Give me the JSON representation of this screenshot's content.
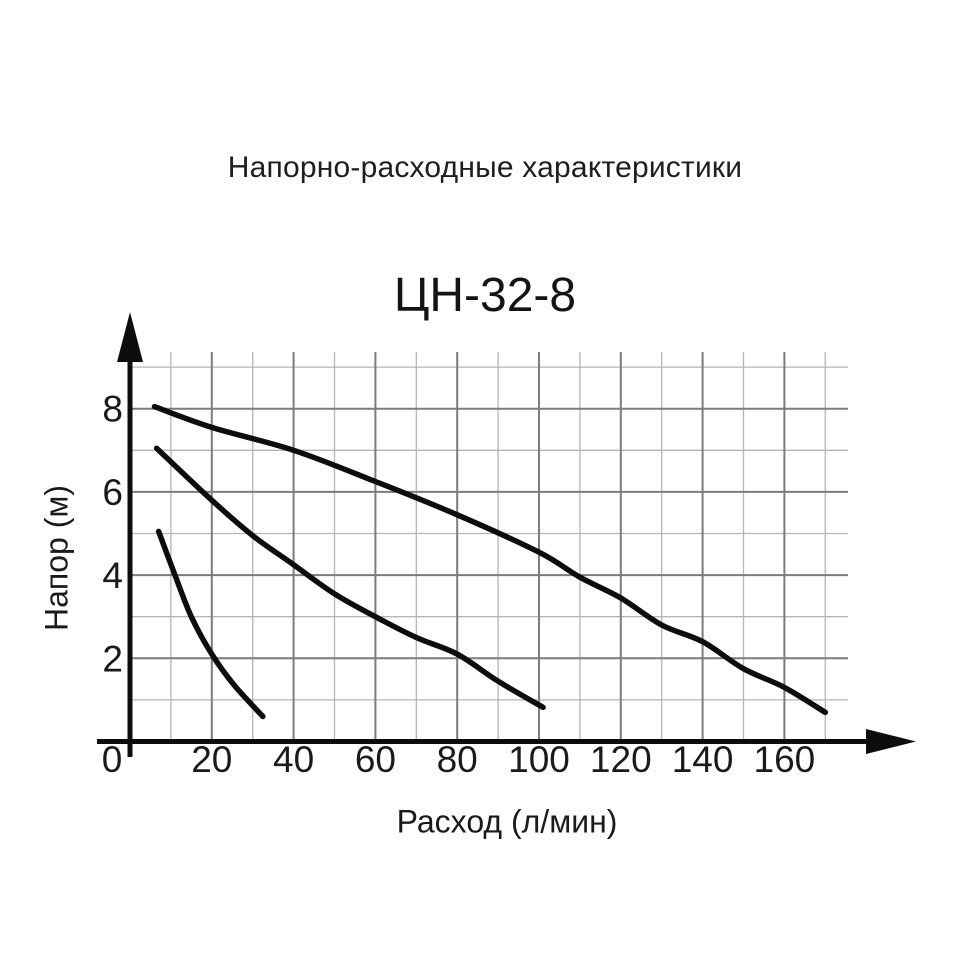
{
  "figure": {
    "title": "Напорно-расходные характеристики",
    "subtitle": "ЦН-32-8"
  },
  "chart_data": {
    "type": "line",
    "title": "ЦН-32-8",
    "xlabel": "Расход (л/мин)",
    "ylabel": "Напор (м)",
    "x_ticks": [
      0,
      20,
      40,
      60,
      80,
      100,
      120,
      140,
      160
    ],
    "y_ticks": [
      2,
      4,
      6,
      8
    ],
    "x_minor_step": 10,
    "y_minor_step": 1,
    "xlim": [
      0,
      175
    ],
    "ylim": [
      0,
      9
    ],
    "grid": "on",
    "legend": "none",
    "curve_color": "#0d0d0d",
    "minor_grid_color": "#b5b5b5",
    "major_grid_color": "#7c7c7c",
    "series": [
      {
        "name": "curve-high-head",
        "points": [
          [
            6,
            8.05
          ],
          [
            20,
            7.55
          ],
          [
            40,
            7.0
          ],
          [
            60,
            6.25
          ],
          [
            80,
            5.45
          ],
          [
            100,
            4.55
          ],
          [
            110,
            3.95
          ],
          [
            120,
            3.45
          ],
          [
            130,
            2.8
          ],
          [
            140,
            2.4
          ],
          [
            150,
            1.75
          ],
          [
            160,
            1.3
          ],
          [
            170,
            0.7
          ]
        ]
      },
      {
        "name": "curve-mid-head",
        "points": [
          [
            6.5,
            7.05
          ],
          [
            20,
            5.8
          ],
          [
            30,
            4.95
          ],
          [
            40,
            4.25
          ],
          [
            50,
            3.55
          ],
          [
            60,
            3.0
          ],
          [
            70,
            2.5
          ],
          [
            80,
            2.1
          ],
          [
            90,
            1.45
          ],
          [
            101,
            0.82
          ]
        ]
      },
      {
        "name": "curve-low-head",
        "points": [
          [
            7,
            5.05
          ],
          [
            11,
            4.0
          ],
          [
            15,
            3.0
          ],
          [
            20,
            2.1
          ],
          [
            25.5,
            1.35
          ],
          [
            32.5,
            0.6
          ]
        ]
      }
    ]
  }
}
